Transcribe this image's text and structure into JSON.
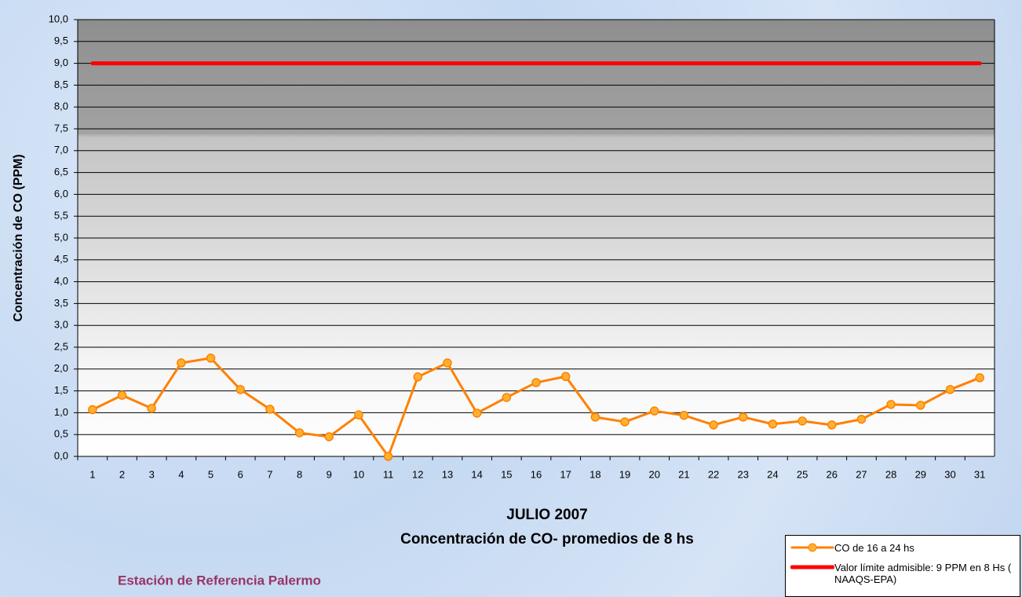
{
  "chart_data": {
    "type": "line",
    "title": "JULIO 2007",
    "subtitle": "Concentración de CO- promedios de 8 hs",
    "ylabel": "Concentración de CO (PPM)",
    "footer": "Estación de Referencia Palermo",
    "categories": [
      "1",
      "2",
      "3",
      "4",
      "5",
      "6",
      "7",
      "8",
      "9",
      "10",
      "11",
      "12",
      "13",
      "14",
      "15",
      "16",
      "17",
      "18",
      "19",
      "20",
      "21",
      "22",
      "23",
      "24",
      "25",
      "26",
      "27",
      "28",
      "29",
      "30",
      "31"
    ],
    "series": [
      {
        "name": "CO de 16 a 24 hs",
        "color": "#ff8000",
        "marker": true,
        "values": [
          1.07,
          1.4,
          1.1,
          2.14,
          2.25,
          1.53,
          1.08,
          0.54,
          0.45,
          0.95,
          0,
          1.82,
          2.14,
          0.99,
          1.35,
          1.69,
          1.83,
          0.9,
          0.79,
          1.04,
          0.94,
          0.72,
          0.9,
          0.74,
          0.81,
          0.72,
          0.85,
          1.19,
          1.17,
          1.53,
          1.8
        ]
      },
      {
        "name": "Valor límite admisible: 9 PPM en 8 Hs ( NAAQS-EPA)",
        "color": "#ff0000",
        "marker": false,
        "values": [
          9,
          9,
          9,
          9,
          9,
          9,
          9,
          9,
          9,
          9,
          9,
          9,
          9,
          9,
          9,
          9,
          9,
          9,
          9,
          9,
          9,
          9,
          9,
          9,
          9,
          9,
          9,
          9,
          9,
          9,
          9
        ]
      }
    ],
    "ylim": [
      0,
      10
    ],
    "yticks": [
      {
        "value": 0,
        "label": "0,0"
      },
      {
        "value": 0.5,
        "label": "0,5"
      },
      {
        "value": 1,
        "label": "1,0"
      },
      {
        "value": 1.5,
        "label": "1,5"
      },
      {
        "value": 2,
        "label": "2,0"
      },
      {
        "value": 2.5,
        "label": "2,5"
      },
      {
        "value": 3,
        "label": "3,0"
      },
      {
        "value": 3.5,
        "label": "3,5"
      },
      {
        "value": 4,
        "label": "4,0"
      },
      {
        "value": 4.5,
        "label": "4,5"
      },
      {
        "value": 5,
        "label": "5,0"
      },
      {
        "value": 5.5,
        "label": "5,5"
      },
      {
        "value": 6,
        "label": "6,0"
      },
      {
        "value": 6.5,
        "label": "6,5"
      },
      {
        "value": 7,
        "label": "7,0"
      },
      {
        "value": 7.5,
        "label": "7,5"
      },
      {
        "value": 8,
        "label": "8,0"
      },
      {
        "value": 8.5,
        "label": "8,5"
      },
      {
        "value": 9,
        "label": "9,0"
      },
      {
        "value": 9.5,
        "label": "9,5"
      },
      {
        "value": 10,
        "label": "10,0"
      }
    ],
    "grid": true,
    "legend": "bottom-right"
  }
}
